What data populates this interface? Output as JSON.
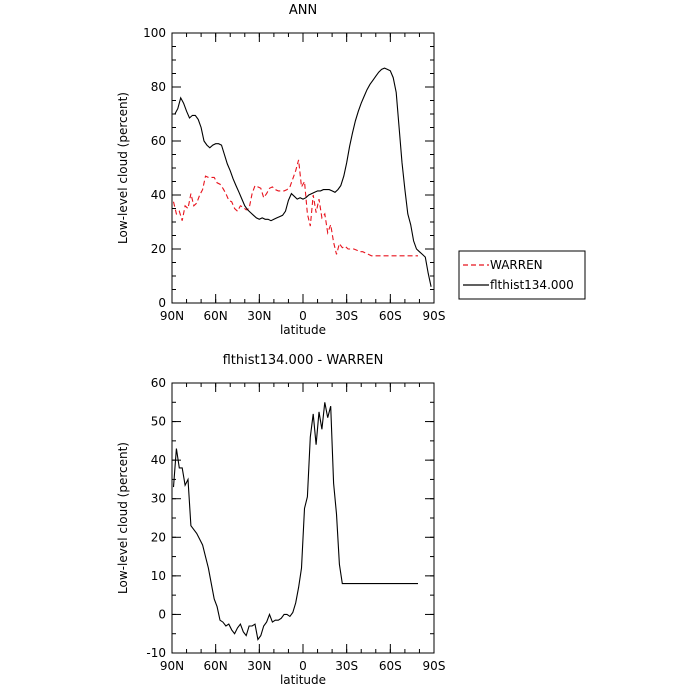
{
  "chart_data": [
    {
      "type": "line",
      "title": "ANN",
      "xlabel": "latitude",
      "ylabel": "Low-level cloud (percent)",
      "ylim": [
        0,
        100
      ],
      "xlim": [
        90,
        -90
      ],
      "x_ticks": [
        {
          "value": 90,
          "label": "90N"
        },
        {
          "value": 60,
          "label": "60N"
        },
        {
          "value": 30,
          "label": "30N"
        },
        {
          "value": 0,
          "label": "0"
        },
        {
          "value": -30,
          "label": "30S"
        },
        {
          "value": -60,
          "label": "60S"
        },
        {
          "value": -90,
          "label": "90S"
        }
      ],
      "y_ticks": [
        0,
        20,
        40,
        60,
        80,
        100
      ],
      "legend_position": "right",
      "grid": false,
      "series": [
        {
          "name": "WARREN",
          "color": "#e8141e",
          "dash": "dashed",
          "x": [
            89,
            87,
            85,
            83,
            81,
            79,
            77,
            75,
            73,
            71,
            69,
            67,
            65,
            63,
            61,
            59,
            57,
            55,
            53,
            51,
            49,
            47,
            45,
            43,
            41,
            39,
            37,
            35,
            33,
            31,
            29,
            27,
            25,
            23,
            21,
            19,
            17,
            15,
            13,
            11,
            9,
            7,
            5,
            3,
            1,
            -1,
            -3,
            -5,
            -7,
            -9,
            -11,
            -13,
            -15,
            -17,
            -19,
            -21,
            -23,
            -25,
            -27,
            -29,
            -31,
            -33,
            -35,
            -37,
            -39,
            -41,
            -43,
            -45,
            -47,
            -49,
            -51,
            -53,
            -55,
            -57,
            -59,
            -61,
            -63,
            -65,
            -67,
            -69,
            -71,
            -73,
            -75,
            -77,
            -79
          ],
          "y": [
            37.5,
            33,
            34,
            30.5,
            36,
            35,
            40.5,
            36,
            37,
            40,
            42,
            47,
            46.5,
            46.5,
            46.5,
            44.5,
            44,
            42.5,
            40.5,
            38,
            37.5,
            35,
            34,
            36,
            35.5,
            34.5,
            35,
            40.5,
            43.5,
            43,
            42.5,
            39,
            40.5,
            42.5,
            43,
            42,
            41.5,
            41.5,
            41.5,
            42,
            43,
            46,
            49,
            53,
            43,
            45,
            33,
            28.5,
            40,
            33.5,
            38.5,
            31.5,
            33,
            26,
            29,
            22.5,
            18,
            22,
            20.5,
            21,
            20,
            20,
            20,
            19.5,
            19,
            19,
            18.5,
            18,
            17.5,
            17.5,
            17.5,
            17.5,
            17.5,
            17.5,
            17.5,
            17.5,
            17.5,
            17.5,
            17.5,
            17.5,
            17.5,
            17.5,
            17.5,
            17.5,
            17.5
          ]
        },
        {
          "name": "flthist134.000",
          "color": "#000000",
          "dash": "solid",
          "x": [
            88,
            86,
            84,
            82,
            80,
            78,
            76,
            74,
            72,
            70,
            68,
            66,
            64,
            62,
            60,
            58,
            56,
            54,
            52,
            50,
            48,
            46,
            44,
            42,
            40,
            38,
            36,
            34,
            32,
            30,
            28,
            26,
            24,
            22,
            20,
            18,
            16,
            14,
            12,
            10,
            8,
            6,
            4,
            2,
            0,
            -2,
            -4,
            -6,
            -8,
            -10,
            -12,
            -14,
            -16,
            -18,
            -20,
            -22,
            -24,
            -26,
            -28,
            -30,
            -32,
            -34,
            -36,
            -38,
            -40,
            -42,
            -44,
            -46,
            -48,
            -50,
            -52,
            -54,
            -56,
            -58,
            -60,
            -62,
            -64,
            -66,
            -68,
            -70,
            -72,
            -74,
            -76,
            -78,
            -80,
            -82,
            -84,
            -86,
            -88
          ],
          "y": [
            70,
            72,
            76,
            74,
            71,
            68.5,
            69.5,
            69.5,
            68,
            65,
            60,
            58.5,
            57.5,
            58.5,
            59,
            59,
            58.5,
            55,
            51.5,
            49,
            46,
            43.5,
            41,
            38.5,
            36,
            34.5,
            33.5,
            32.5,
            31.5,
            31,
            31.5,
            31,
            31,
            30.5,
            31,
            31.5,
            32,
            32.5,
            34,
            38,
            40.5,
            39.5,
            38.5,
            39,
            38.5,
            39,
            40,
            40.5,
            41,
            41.5,
            41.5,
            42,
            42,
            42,
            41.5,
            41,
            42,
            43.5,
            47,
            52,
            58,
            63,
            67.5,
            71,
            74,
            76.5,
            79,
            81,
            82.5,
            84,
            85.5,
            86.5,
            87,
            86.5,
            86,
            83.5,
            78,
            65,
            52,
            42,
            33,
            29,
            23,
            20,
            19,
            18,
            17,
            11,
            6
          ]
        }
      ]
    },
    {
      "type": "line",
      "title": "flthist134.000 - WARREN",
      "xlabel": "latitude",
      "ylabel": "Low-level cloud (percent)",
      "ylim": [
        -10,
        60
      ],
      "xlim": [
        90,
        -90
      ],
      "x_ticks": [
        {
          "value": 90,
          "label": "90N"
        },
        {
          "value": 60,
          "label": "60N"
        },
        {
          "value": 30,
          "label": "30N"
        },
        {
          "value": 0,
          "label": "0"
        },
        {
          "value": -30,
          "label": "30S"
        },
        {
          "value": -60,
          "label": "60S"
        },
        {
          "value": -90,
          "label": "90S"
        }
      ],
      "y_ticks": [
        -10,
        0,
        10,
        20,
        30,
        40,
        50,
        60
      ],
      "grid": false,
      "series": [
        {
          "color": "#000000",
          "dash": "solid",
          "x": [
            89,
            87,
            85,
            83,
            81,
            79,
            77,
            75,
            73,
            71,
            69,
            67,
            65,
            63,
            61,
            59,
            57,
            55,
            53,
            51,
            49,
            47,
            45,
            43,
            41,
            39,
            37,
            35,
            33,
            31,
            29,
            27,
            25,
            23,
            21,
            19,
            17,
            15,
            13,
            11,
            9,
            7,
            5,
            3,
            1,
            -1,
            -3,
            -5,
            -7,
            -9,
            -11,
            -13,
            -15,
            -17,
            -19,
            -21,
            -23,
            -25,
            -27,
            -29,
            -31,
            -33,
            -35,
            -37,
            -39,
            -41,
            -43,
            -45,
            -47,
            -49,
            -51,
            -53,
            -55,
            -57,
            -59,
            -61,
            -63,
            -65,
            -67,
            -69,
            -71,
            -73,
            -75,
            -77,
            -79
          ],
          "y": [
            33,
            43,
            38,
            38,
            33.5,
            35,
            23,
            22,
            21,
            19.5,
            18,
            15,
            12,
            8,
            4,
            2,
            -1.5,
            -2,
            -3,
            -2.5,
            -4,
            -5,
            -3.5,
            -2.5,
            -4.5,
            -5.5,
            -3,
            -3,
            -2.5,
            -6.5,
            -5.5,
            -3,
            -2,
            0,
            -2,
            -1.5,
            -1.5,
            -1,
            0,
            0,
            -0.5,
            0.5,
            3,
            7,
            12,
            27.5,
            30.5,
            46,
            52,
            44,
            52.5,
            48,
            55,
            51,
            54,
            34,
            26,
            13,
            8,
            8,
            8,
            8,
            8,
            8,
            8,
            8,
            8,
            8,
            8,
            8,
            8,
            8,
            8,
            8,
            8,
            8,
            8,
            8,
            8,
            8,
            8,
            8,
            8,
            8,
            8
          ]
        }
      ]
    }
  ]
}
